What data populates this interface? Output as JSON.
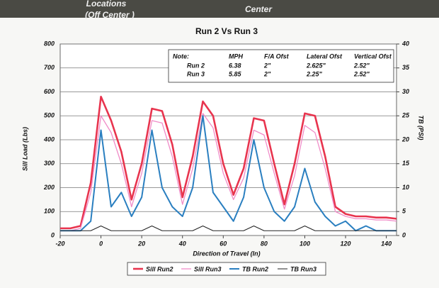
{
  "top_labels": [
    "Locations",
    "(Off Center )",
    "Center"
  ],
  "chart_data": {
    "type": "line",
    "title": "Run 2 Vs Run 3",
    "x_label": "Direction of Travel (In)",
    "y_label": "Sill Load (Lbs)",
    "y2_label": "TB (PSI)",
    "x": [
      -20,
      -15,
      -10,
      -5,
      0,
      5,
      10,
      15,
      20,
      25,
      30,
      35,
      40,
      45,
      50,
      55,
      60,
      65,
      70,
      75,
      80,
      85,
      90,
      95,
      100,
      105,
      110,
      115,
      120,
      125,
      130,
      135,
      140,
      145
    ],
    "series": [
      {
        "name": "Sill Run2",
        "color": "#e8344e",
        "width": 2.6,
        "values": [
          30,
          30,
          40,
          220,
          580,
          480,
          350,
          150,
          300,
          530,
          520,
          380,
          160,
          330,
          560,
          500,
          300,
          170,
          280,
          490,
          480,
          300,
          130,
          300,
          510,
          500,
          330,
          120,
          90,
          80,
          80,
          75,
          75,
          70
        ]
      },
      {
        "name": "Sill Run3",
        "color": "#f08cc8",
        "width": 1.3,
        "values": [
          20,
          20,
          30,
          180,
          500,
          430,
          300,
          120,
          260,
          480,
          470,
          330,
          130,
          280,
          510,
          450,
          260,
          150,
          240,
          440,
          420,
          260,
          110,
          250,
          460,
          430,
          280,
          100,
          80,
          70,
          70,
          65,
          65,
          60
        ]
      },
      {
        "name": "TB Run2",
        "color": "#2a7fc0",
        "width": 2,
        "axis": "y2",
        "values": [
          1,
          1,
          1,
          3,
          22,
          6,
          9,
          4,
          8,
          22,
          10,
          6,
          4,
          10,
          25,
          9,
          6,
          3,
          8,
          20,
          10,
          5,
          3,
          6,
          14,
          7,
          4,
          2,
          3,
          1,
          2,
          1,
          1,
          1
        ]
      },
      {
        "name": "TB Run3",
        "color": "#222222",
        "width": 1,
        "axis": "y2",
        "values": [
          1,
          1,
          1,
          1,
          2,
          1,
          1,
          1,
          1,
          2,
          1,
          1,
          1,
          1,
          2,
          1,
          1,
          1,
          1,
          2,
          1,
          1,
          1,
          1,
          2,
          1,
          1,
          1,
          1,
          1,
          1,
          1,
          1,
          1
        ]
      }
    ],
    "xlim": [
      -20,
      145
    ],
    "xticks": [
      -20,
      0,
      20,
      40,
      60,
      80,
      100,
      120,
      140
    ],
    "ylim": [
      0,
      800
    ],
    "yticks": [
      0,
      100,
      200,
      300,
      400,
      500,
      600,
      700,
      800
    ],
    "y2lim": [
      0,
      40
    ],
    "y2ticks": [
      0,
      5,
      10,
      15,
      20,
      25,
      30,
      35,
      40
    ],
    "grid": true,
    "legend": "bottom",
    "note": {
      "header": [
        "Note:",
        "MPH",
        "F/A Ofst",
        "Lateral Ofst",
        "Vertical Ofst"
      ],
      "rows": [
        [
          "Run 2",
          "6.38",
          "2\"",
          "2.625\"",
          "2.52\""
        ],
        [
          "Run 3",
          "5.85",
          "2\"",
          "2.25\"",
          "2.52\""
        ]
      ]
    }
  }
}
